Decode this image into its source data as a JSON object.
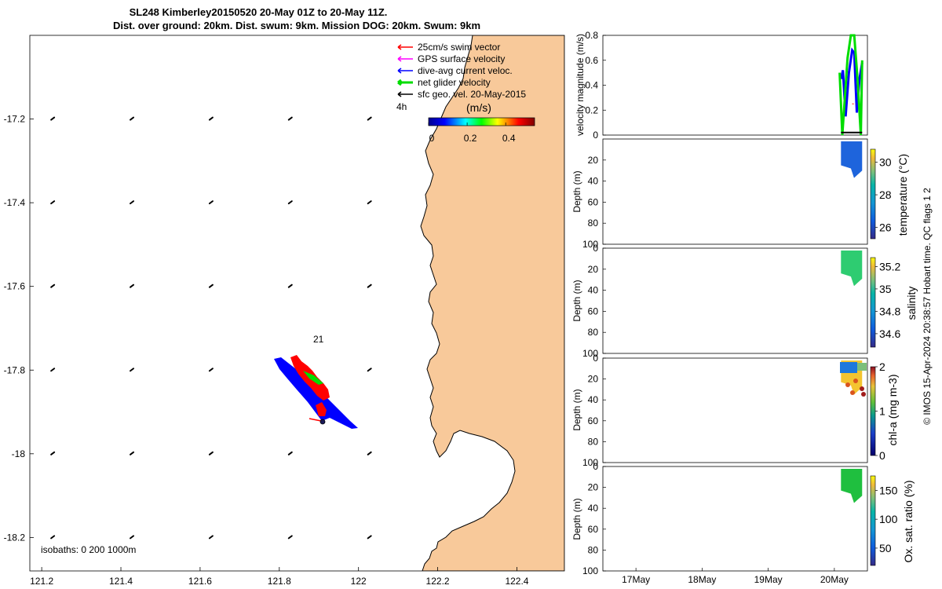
{
  "title": {
    "line1": "SL248 Kimberley20150520 20-May 01Z to 20-May 11Z.",
    "line2": "Dist. over ground: 20km. Dist. swum: 9km. Mission DOG: 20km. Swum: 9km"
  },
  "colors": {
    "land": "#f8c99a",
    "swim": "#ff0000",
    "gps": "#ff00ff",
    "current": "#0000ff",
    "net": "#00dd00",
    "geo": "#000000",
    "temp_fill": "#1e64dc",
    "sal_fill": "#2ecc71",
    "chla_fill": "#f4c430",
    "ox_fill": "#1fbf3f"
  },
  "map": {
    "legend": [
      {
        "label": "25cm/s swim vector",
        "color_key": "swim"
      },
      {
        "label": "GPS surface velocity",
        "color_key": "gps"
      },
      {
        "label": "dive-avg current veloc.",
        "color_key": "current"
      },
      {
        "label": "net glider velocity",
        "color_key": "net"
      },
      {
        "label": "sfc geo. vel. 20-May-2015",
        "color_key": "geo"
      }
    ],
    "time_label": "4h",
    "colorbar_label": "(m/s)",
    "colorbar_ticks": [
      "0",
      "0.2",
      "0.4"
    ],
    "colorbar_range": [
      0,
      0.55
    ],
    "colorbar_values": [
      0,
      0.2,
      0.4
    ],
    "xticks": [
      "121.2",
      "121.4",
      "121.6",
      "121.8",
      "122",
      "122.2",
      "122.4"
    ],
    "yticks": [
      "-17.2",
      "-17.4",
      "-17.6",
      "-17.8",
      "-18",
      "-18.2"
    ],
    "xlim": [
      121.17,
      122.52
    ],
    "ylim": [
      -18.28,
      -17.0
    ],
    "dive_label": "21",
    "isobaths_text": "isobaths: 0   200  1000m"
  },
  "chart_data": [
    {
      "type": "line",
      "title": "",
      "xlabel": "",
      "ylabel": "velocity magnitude (m/s)",
      "xticks": [
        "17May",
        "18May",
        "19May",
        "20May"
      ],
      "yticks": [
        "0",
        "0.2",
        "0.4",
        "0.6",
        "0.8"
      ],
      "ylim": [
        0,
        0.8
      ],
      "series": [
        {
          "name": "dive-avg current veloc.",
          "x": [
            20.1,
            20.13,
            20.17,
            20.22,
            20.27,
            20.3,
            20.34,
            20.38,
            20.42
          ],
          "values": [
            0.45,
            0.52,
            0.15,
            0.5,
            0.68,
            0.66,
            0.18,
            0.45,
            0.58
          ]
        },
        {
          "name": "net glider velocity",
          "x": [
            20.08,
            20.12,
            20.2,
            20.25,
            20.3,
            20.35,
            20.4,
            20.42
          ],
          "values": [
            0.5,
            0.0,
            0.62,
            0.8,
            0.8,
            0.45,
            0.0,
            0.6
          ]
        },
        {
          "name": "swim",
          "x": [
            20.27,
            20.32
          ],
          "values": [
            0.25,
            0.25
          ]
        },
        {
          "name": "sfc",
          "x": [
            20.1,
            20.42
          ],
          "values": [
            0.02,
            0.02
          ]
        }
      ]
    },
    {
      "type": "heatmap",
      "ylabel": "Depth (m)",
      "yticks": [
        "20",
        "40",
        "60",
        "80",
        "100"
      ],
      "ylim": [
        0,
        100
      ],
      "colorbar_label": "temperature (°C)",
      "colorbar_ticks": [
        "26",
        "28",
        "30"
      ],
      "colorbar_range": [
        25.3,
        30.8
      ],
      "colorbar_values": [
        26,
        28,
        30
      ],
      "max_depth": 37
    },
    {
      "type": "heatmap",
      "ylabel": "Depth (m)",
      "yticks": [
        "0",
        "20",
        "40",
        "60",
        "80",
        "100"
      ],
      "ylim": [
        0,
        100
      ],
      "colorbar_label": "salinity",
      "colorbar_ticks": [
        "34.6",
        "34.8",
        "35",
        "35.2"
      ],
      "colorbar_range": [
        34.48,
        35.28
      ],
      "colorbar_values": [
        34.6,
        34.8,
        35.0,
        35.2
      ],
      "max_depth": 36
    },
    {
      "type": "heatmap",
      "ylabel": "Depth (m)",
      "yticks": [
        "0",
        "20",
        "40",
        "60",
        "80",
        "100"
      ],
      "ylim": [
        0,
        100
      ],
      "colorbar_label": "chl-a (mg m-3)",
      "colorbar_ticks": [
        "0",
        "1",
        "2"
      ],
      "colorbar_range": [
        0,
        2
      ],
      "colorbar_values": [
        0,
        1,
        2
      ],
      "max_depth": 35
    },
    {
      "type": "heatmap",
      "ylabel": "Depth (m)",
      "xticks": [
        "17May",
        "18May",
        "19May",
        "20May"
      ],
      "yticks": [
        "0",
        "20",
        "40",
        "60",
        "80",
        "100"
      ],
      "ylim": [
        0,
        100
      ],
      "colorbar_label": "Ox. sat. ratio (%)",
      "colorbar_ticks": [
        "50",
        "100",
        "150"
      ],
      "colorbar_range": [
        20,
        175
      ],
      "colorbar_values": [
        50,
        100,
        150
      ],
      "max_depth": 35
    }
  ],
  "footer": "© IMOS 15-Apr-2024 20:38:57 Hobart time. QC flags 1  2"
}
